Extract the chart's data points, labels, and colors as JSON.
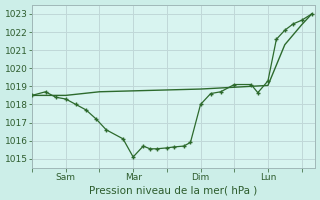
{
  "xlabel": "Pression niveau de la mer( hPa )",
  "background_color": "#cceee8",
  "plot_bg_color": "#d8f4f0",
  "grid_color": "#c0d8d8",
  "line_color": "#2d6a2d",
  "ylim": [
    1014.5,
    1023.5
  ],
  "yticks": [
    1015,
    1016,
    1017,
    1018,
    1019,
    1020,
    1021,
    1022,
    1023
  ],
  "xlim": [
    0,
    8.4
  ],
  "x_tick_positions": [
    0,
    1,
    2,
    3,
    4,
    5,
    6,
    7,
    8
  ],
  "x_tick_labels": [
    "",
    "Sam",
    "",
    "Mar",
    "",
    "Dim",
    "",
    "Lun",
    ""
  ],
  "series1_x": [
    0.0,
    0.4,
    0.7,
    1.0,
    1.3,
    1.6,
    1.9,
    2.2,
    2.7,
    3.0,
    3.3,
    3.5,
    3.7,
    4.0,
    4.2,
    4.5,
    4.7,
    5.0,
    5.3,
    5.6,
    6.0,
    6.5,
    6.7,
    7.0,
    7.25,
    7.5,
    7.75,
    8.0,
    8.3
  ],
  "series1_y": [
    1018.5,
    1018.7,
    1018.4,
    1018.3,
    1018.0,
    1017.7,
    1017.2,
    1016.6,
    1016.1,
    1015.1,
    1015.7,
    1015.55,
    1015.55,
    1015.6,
    1015.65,
    1015.7,
    1015.9,
    1018.0,
    1018.6,
    1018.7,
    1019.1,
    1019.1,
    1018.65,
    1019.3,
    1021.6,
    1022.1,
    1022.45,
    1022.65,
    1023.0
  ],
  "series2_x": [
    0.0,
    1.0,
    2.0,
    3.0,
    4.0,
    5.0,
    5.5,
    6.0,
    6.5,
    7.0,
    7.5,
    8.0,
    8.3
  ],
  "series2_y": [
    1018.5,
    1018.5,
    1018.7,
    1018.75,
    1018.8,
    1018.85,
    1018.9,
    1018.95,
    1019.0,
    1019.05,
    1021.3,
    1022.4,
    1023.0
  ]
}
